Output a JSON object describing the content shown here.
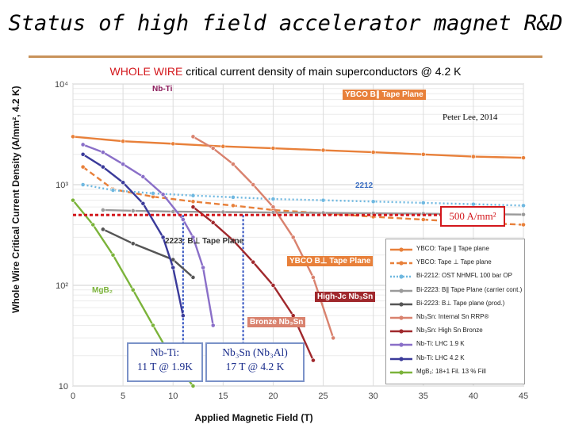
{
  "slide": {
    "title": "Status of high field accelerator magnet R&D",
    "subtitle_highlight": "WHOLE WIRE",
    "subtitle_rest": " critical current density of main superconductors @ 4.2 K",
    "credit": "Peter Lee, 2014",
    "threshold_label": "500 A/mm²",
    "callout_nbti": [
      "Nb-Ti:",
      "11 T @ 1.9K"
    ],
    "callout_nb3sn": [
      "Nb₃Sn (Nb₃Al)",
      "17 T @ 4.2 K"
    ]
  },
  "annotations": [
    {
      "text": "Nb-Ti",
      "color": "#8b1a5a"
    },
    {
      "text": "YBCO B∥ Tape Plane",
      "color": "#ffffff"
    },
    {
      "text": "2212",
      "color": "#3b6ec2"
    },
    {
      "text": "2223: B⊥ Tape Plane",
      "color": "#333333"
    },
    {
      "text": "YBCO B⊥ Tape Plane",
      "color": "#ffffff"
    },
    {
      "text": "High-Jc Nb₃Sn",
      "color": "#ffffff"
    },
    {
      "text": "Bronze Nb₃Sn",
      "color": "#ffffff"
    },
    {
      "text": "MgB₂",
      "color": "#7bb33a"
    }
  ],
  "chart_data": {
    "type": "line",
    "title": "",
    "xlabel": "Applied Magnetic Field (T)",
    "ylabel": "Whole Wire Critical Current Density (A/mm², 4.2 K)",
    "x_range": [
      0,
      45
    ],
    "x_ticks": [
      "0",
      "5",
      "10",
      "15",
      "20",
      "25",
      "30",
      "35",
      "40",
      "45"
    ],
    "y_range": [
      10,
      10000
    ],
    "y_scale": "log",
    "y_ticks": [
      "10",
      "10²",
      "10³",
      "10⁴"
    ],
    "threshold": {
      "y": 500,
      "label": "500 A/mm²"
    },
    "series": [
      {
        "name": "YBCO: Tape ∥ Tape plane",
        "color": "#e8803a",
        "dash": "solid",
        "x": [
          0,
          5,
          10,
          15,
          20,
          25,
          30,
          35,
          40,
          45
        ],
        "y": [
          3000,
          2700,
          2550,
          2400,
          2300,
          2200,
          2100,
          2000,
          1900,
          1850
        ]
      },
      {
        "name": "YBCO: Tape ⊥ Tape plane",
        "color": "#e8803a",
        "dash": "dash",
        "x": [
          1,
          4,
          8,
          12,
          16,
          20,
          25,
          30,
          35,
          40,
          45
        ],
        "y": [
          1500,
          900,
          760,
          680,
          620,
          560,
          520,
          480,
          450,
          420,
          400
        ]
      },
      {
        "name": "Bi-2212: OST NHMFL 100 bar OP",
        "color": "#6fb8e0",
        "dash": "dot",
        "x": [
          1,
          4,
          8,
          12,
          16,
          20,
          25,
          30,
          35,
          40,
          45
        ],
        "y": [
          1000,
          880,
          820,
          780,
          750,
          720,
          700,
          680,
          660,
          640,
          620
        ]
      },
      {
        "name": "Bi-2223: B∥ Tape Plane (carrier cont.)",
        "color": "#9a9a9a",
        "dash": "solid",
        "x": [
          3,
          6,
          10,
          15,
          20,
          25,
          30,
          35,
          40,
          45
        ],
        "y": [
          560,
          550,
          540,
          535,
          530,
          525,
          520,
          515,
          510,
          505
        ]
      },
      {
        "name": "Bi-2223: B⊥ Tape plane (prod.)",
        "color": "#555555",
        "dash": "solid",
        "x": [
          3,
          6,
          10,
          12
        ],
        "y": [
          360,
          260,
          180,
          120
        ]
      },
      {
        "name": "Nb₃Sn: Internal Sn RRP®",
        "color": "#d9826e",
        "dash": "solid",
        "x": [
          12,
          14,
          16,
          18,
          20,
          22,
          24,
          26
        ],
        "y": [
          3000,
          2300,
          1600,
          1000,
          600,
          300,
          120,
          30
        ]
      },
      {
        "name": "Nb₃Sn: High Sn Bronze",
        "color": "#a0282c",
        "dash": "solid",
        "x": [
          12,
          14,
          16,
          18,
          20,
          22,
          24
        ],
        "y": [
          600,
          420,
          280,
          170,
          100,
          50,
          18
        ]
      },
      {
        "name": "Nb-Ti: LHC 1.9 K",
        "color": "#8a6fc8",
        "dash": "solid",
        "x": [
          1,
          3,
          5,
          7,
          9,
          11,
          12,
          13,
          14
        ],
        "y": [
          2500,
          2100,
          1600,
          1200,
          800,
          450,
          300,
          150,
          40
        ]
      },
      {
        "name": "Nb-Ti: LHC 4.2 K",
        "color": "#3a3a9a",
        "dash": "solid",
        "x": [
          1,
          3,
          5,
          7,
          9,
          10,
          11
        ],
        "y": [
          2000,
          1500,
          1050,
          650,
          300,
          150,
          50
        ]
      },
      {
        "name": "MgB₂: 18+1 Fil. 13 % Fill",
        "color": "#7bb33a",
        "dash": "solid",
        "x": [
          0,
          2,
          4,
          6,
          8,
          10,
          12
        ],
        "y": [
          700,
          400,
          200,
          90,
          40,
          18,
          10
        ]
      }
    ]
  }
}
